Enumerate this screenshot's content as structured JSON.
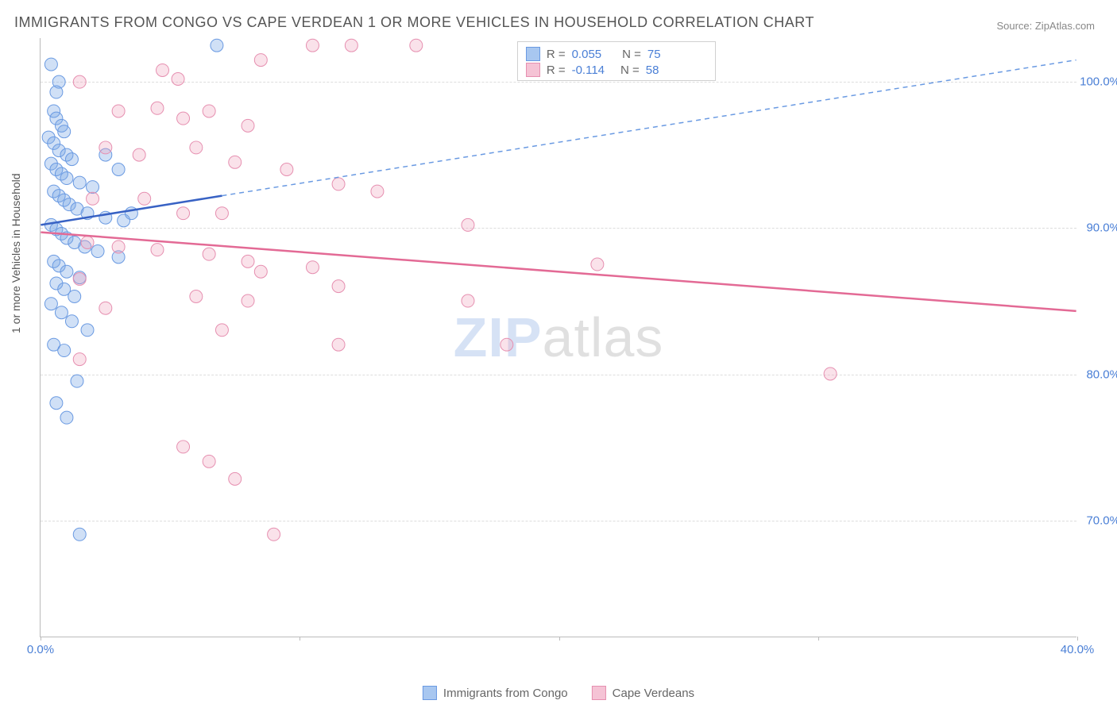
{
  "title": "IMMIGRANTS FROM CONGO VS CAPE VERDEAN 1 OR MORE VEHICLES IN HOUSEHOLD CORRELATION CHART",
  "source": "Source: ZipAtlas.com",
  "ylabel": "1 or more Vehicles in Household",
  "watermark_a": "ZIP",
  "watermark_b": "atlas",
  "chart": {
    "type": "scatter",
    "xlim": [
      0,
      40
    ],
    "ylim": [
      62,
      103
    ],
    "xticks": [
      0,
      10,
      20,
      30,
      40
    ],
    "xtick_labels": [
      "0.0%",
      "",
      "",
      "",
      "40.0%"
    ],
    "yticks": [
      70,
      80,
      90,
      100
    ],
    "ytick_labels": [
      "70.0%",
      "80.0%",
      "90.0%",
      "100.0%"
    ],
    "grid_color": "#dddddd",
    "background_color": "#ffffff",
    "marker_radius": 8,
    "series": [
      {
        "name": "Immigrants from Congo",
        "color_fill": "#a8c7f0",
        "color_stroke": "#6a9ae2",
        "R": "0.055",
        "N": "75",
        "trend": {
          "x1": 0,
          "y1": 90.2,
          "x2": 7,
          "y2": 92.2,
          "x2_dash": 40,
          "y2_dash": 101.5
        },
        "points": [
          [
            0.4,
            101.2
          ],
          [
            0.7,
            100.0
          ],
          [
            0.6,
            99.3
          ],
          [
            0.5,
            98.0
          ],
          [
            0.6,
            97.5
          ],
          [
            0.8,
            97.0
          ],
          [
            0.9,
            96.6
          ],
          [
            0.3,
            96.2
          ],
          [
            0.5,
            95.8
          ],
          [
            0.7,
            95.3
          ],
          [
            1.0,
            95.0
          ],
          [
            1.2,
            94.7
          ],
          [
            0.4,
            94.4
          ],
          [
            0.6,
            94.0
          ],
          [
            0.8,
            93.7
          ],
          [
            1.0,
            93.4
          ],
          [
            1.5,
            93.1
          ],
          [
            2.0,
            92.8
          ],
          [
            0.5,
            92.5
          ],
          [
            0.7,
            92.2
          ],
          [
            0.9,
            91.9
          ],
          [
            1.1,
            91.6
          ],
          [
            1.4,
            91.3
          ],
          [
            1.8,
            91.0
          ],
          [
            2.5,
            90.7
          ],
          [
            3.2,
            90.5
          ],
          [
            0.4,
            90.2
          ],
          [
            0.6,
            89.9
          ],
          [
            0.8,
            89.6
          ],
          [
            1.0,
            89.3
          ],
          [
            1.3,
            89.0
          ],
          [
            1.7,
            88.7
          ],
          [
            2.2,
            88.4
          ],
          [
            3.0,
            88.0
          ],
          [
            0.5,
            87.7
          ],
          [
            0.7,
            87.4
          ],
          [
            1.0,
            87.0
          ],
          [
            1.5,
            86.6
          ],
          [
            0.6,
            86.2
          ],
          [
            0.9,
            85.8
          ],
          [
            1.3,
            85.3
          ],
          [
            0.4,
            84.8
          ],
          [
            0.8,
            84.2
          ],
          [
            1.2,
            83.6
          ],
          [
            1.8,
            83.0
          ],
          [
            0.5,
            82.0
          ],
          [
            0.9,
            81.6
          ],
          [
            1.4,
            79.5
          ],
          [
            0.6,
            78.0
          ],
          [
            1.0,
            77.0
          ],
          [
            1.5,
            69.0
          ],
          [
            6.8,
            102.5
          ],
          [
            3.0,
            94.0
          ],
          [
            3.5,
            91.0
          ],
          [
            2.5,
            95.0
          ]
        ]
      },
      {
        "name": "Cape Verdeans",
        "color_fill": "#f5c3d5",
        "color_stroke": "#e68fb0",
        "R": "-0.114",
        "N": "58",
        "trend": {
          "x1": 0,
          "y1": 89.7,
          "x2": 40,
          "y2": 84.3
        },
        "points": [
          [
            1.5,
            100.0
          ],
          [
            4.7,
            100.8
          ],
          [
            5.3,
            100.2
          ],
          [
            8.5,
            101.5
          ],
          [
            10.5,
            102.5
          ],
          [
            12.0,
            102.5
          ],
          [
            14.5,
            102.5
          ],
          [
            21.5,
            102.0
          ],
          [
            3.0,
            98.0
          ],
          [
            4.5,
            98.2
          ],
          [
            5.5,
            97.5
          ],
          [
            6.5,
            98.0
          ],
          [
            8.0,
            97.0
          ],
          [
            2.5,
            95.5
          ],
          [
            3.8,
            95.0
          ],
          [
            6.0,
            95.5
          ],
          [
            7.5,
            94.5
          ],
          [
            9.5,
            94.0
          ],
          [
            11.5,
            93.0
          ],
          [
            2.0,
            92.0
          ],
          [
            4.0,
            92.0
          ],
          [
            5.5,
            91.0
          ],
          [
            7.0,
            91.0
          ],
          [
            1.8,
            89.0
          ],
          [
            3.0,
            88.7
          ],
          [
            4.5,
            88.5
          ],
          [
            6.5,
            88.2
          ],
          [
            8.0,
            87.7
          ],
          [
            8.5,
            87.0
          ],
          [
            10.5,
            87.3
          ],
          [
            11.5,
            86.0
          ],
          [
            1.5,
            86.5
          ],
          [
            2.5,
            84.5
          ],
          [
            6.0,
            85.3
          ],
          [
            8.0,
            85.0
          ],
          [
            13.0,
            92.5
          ],
          [
            16.5,
            90.2
          ],
          [
            7.0,
            83.0
          ],
          [
            11.5,
            82.0
          ],
          [
            16.5,
            85.0
          ],
          [
            18.0,
            82.0
          ],
          [
            21.5,
            87.5
          ],
          [
            30.5,
            80.0
          ],
          [
            5.5,
            75.0
          ],
          [
            6.5,
            74.0
          ],
          [
            7.5,
            72.8
          ],
          [
            9.0,
            69.0
          ],
          [
            1.5,
            81.0
          ]
        ]
      }
    ]
  },
  "legend_bottom": [
    {
      "swatch_fill": "#a8c7f0",
      "swatch_stroke": "#6a9ae2",
      "label": "Immigrants from Congo"
    },
    {
      "swatch_fill": "#f5c3d5",
      "swatch_stroke": "#e68fb0",
      "label": "Cape Verdeans"
    }
  ]
}
